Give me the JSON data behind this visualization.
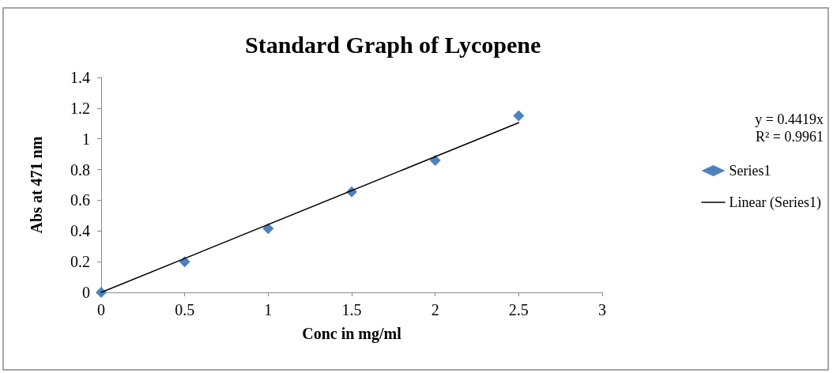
{
  "chart_data": {
    "type": "scatter",
    "title": "Standard Graph of Lycopene",
    "xlabel": "Conc in mg/ml",
    "ylabel": "Abs at 471 nm",
    "series": [
      {
        "name": "Series1",
        "type": "scatter",
        "color": "#4f81bd",
        "x": [
          0,
          0.5,
          1,
          1.5,
          2,
          2.5
        ],
        "values": [
          0,
          0.2,
          0.415,
          0.655,
          0.86,
          1.15
        ],
        "marker": "diamond"
      },
      {
        "name": "Linear (Series1)",
        "type": "line",
        "color": "#000000",
        "x": [
          0,
          2.5
        ],
        "values": [
          0,
          1.105
        ],
        "marker": "none",
        "line_style": "solid"
      }
    ],
    "annotations": [
      "y = 0.4419x",
      "R² = 0.9961"
    ],
    "xlim": [
      0,
      3
    ],
    "xticks": [
      0,
      0.5,
      1,
      1.5,
      2,
      2.5,
      3
    ],
    "ylim": [
      0,
      1.4
    ],
    "yticks": [
      0,
      0.2,
      0.4,
      0.6,
      0.8,
      1,
      1.2,
      1.4
    ],
    "grid": false,
    "legend": "right"
  }
}
